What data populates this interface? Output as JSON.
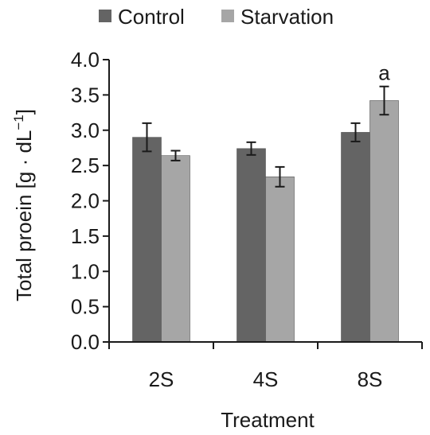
{
  "chart_data": {
    "type": "bar",
    "title": "",
    "xlabel": "Treatment",
    "ylabel": "Total proein [g · dL",
    "ylabel_sup": "−1",
    "ylabel_close": "]",
    "categories": [
      "2S",
      "4S",
      "8S"
    ],
    "series": [
      {
        "name": "Control",
        "color": "#646464",
        "values": [
          2.9,
          2.74,
          2.97
        ],
        "errors": [
          0.2,
          0.09,
          0.13
        ]
      },
      {
        "name": "Starvation",
        "color": "#a6a6a6",
        "values": [
          2.64,
          2.34,
          3.42
        ],
        "errors": [
          0.07,
          0.14,
          0.2
        ]
      }
    ],
    "annotations": [
      {
        "series": 1,
        "category": 2,
        "text": "a"
      }
    ],
    "ylim": [
      0,
      4.0
    ],
    "yticks": [
      "0.0",
      "0.5",
      "1.0",
      "1.5",
      "2.0",
      "2.5",
      "3.0",
      "3.5",
      "4.0"
    ],
    "grid": false,
    "legend_position": "top"
  }
}
